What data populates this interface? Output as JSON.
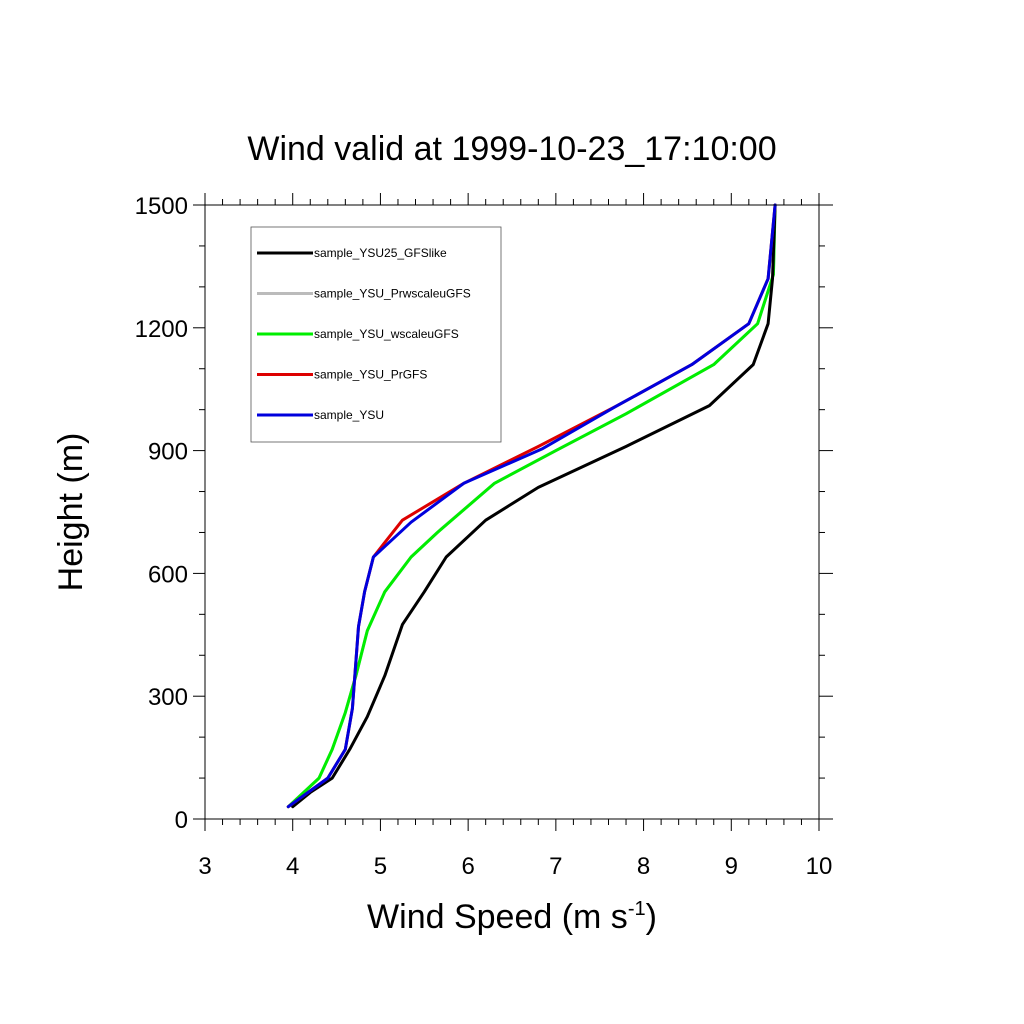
{
  "chart_data": {
    "type": "line",
    "title": "Wind valid at 1999-10-23_17:10:00",
    "xlabel": "Wind Speed (m s",
    "xlabel_sup": "-1",
    "xlabel_tail": ")",
    "ylabel": "Height (m)",
    "xlim": [
      3,
      10
    ],
    "ylim": [
      0,
      1500
    ],
    "x_ticks": [
      3,
      4,
      5,
      6,
      7,
      8,
      9,
      10
    ],
    "y_ticks": [
      0,
      300,
      600,
      900,
      1200,
      1500
    ],
    "x_tick_labels": [
      "3",
      "4",
      "5",
      "6",
      "7",
      "8",
      "9",
      "10"
    ],
    "y_tick_labels": [
      "0",
      "300",
      "600",
      "900",
      "1200",
      "1500"
    ],
    "legend_position": "top-left",
    "grid": false,
    "series": [
      {
        "name": "sample_YSU25_GFSlike",
        "color": "#000000",
        "points": [
          [
            4.0,
            30
          ],
          [
            4.2,
            65
          ],
          [
            4.45,
            100
          ],
          [
            4.65,
            170
          ],
          [
            4.85,
            250
          ],
          [
            5.05,
            350
          ],
          [
            5.25,
            475
          ],
          [
            5.5,
            555
          ],
          [
            5.75,
            640
          ],
          [
            6.2,
            730
          ],
          [
            6.8,
            810
          ],
          [
            7.8,
            910
          ],
          [
            8.75,
            1010
          ],
          [
            9.25,
            1110
          ],
          [
            9.42,
            1210
          ],
          [
            9.47,
            1320
          ],
          [
            9.5,
            1500
          ]
        ]
      },
      {
        "name": "sample_YSU_PrwscaleuGFS",
        "color": "#bbbbbb",
        "points": [
          [
            3.95,
            30
          ],
          [
            4.3,
            100
          ],
          [
            4.45,
            170
          ],
          [
            4.6,
            260
          ],
          [
            4.72,
            350
          ],
          [
            4.85,
            460
          ],
          [
            5.05,
            555
          ],
          [
            5.35,
            640
          ],
          [
            5.7,
            710
          ],
          [
            6.3,
            820
          ],
          [
            7.0,
            900
          ],
          [
            7.8,
            990
          ],
          [
            8.8,
            1110
          ],
          [
            9.3,
            1210
          ],
          [
            9.48,
            1330
          ],
          [
            9.5,
            1500
          ]
        ]
      },
      {
        "name": "sample_YSU_wscaleuGFS",
        "color": "#00ee00",
        "points": [
          [
            3.95,
            30
          ],
          [
            4.3,
            100
          ],
          [
            4.45,
            170
          ],
          [
            4.6,
            260
          ],
          [
            4.72,
            350
          ],
          [
            4.85,
            460
          ],
          [
            5.05,
            555
          ],
          [
            5.35,
            640
          ],
          [
            5.65,
            700
          ],
          [
            6.3,
            820
          ],
          [
            7.0,
            900
          ],
          [
            7.8,
            990
          ],
          [
            8.8,
            1110
          ],
          [
            9.3,
            1210
          ],
          [
            9.48,
            1330
          ],
          [
            9.5,
            1500
          ]
        ]
      },
      {
        "name": "sample_YSU_PrGFS",
        "color": "#dd0000",
        "points": [
          [
            3.95,
            30
          ],
          [
            4.4,
            100
          ],
          [
            4.6,
            170
          ],
          [
            4.68,
            270
          ],
          [
            4.75,
            470
          ],
          [
            4.82,
            555
          ],
          [
            4.92,
            640
          ],
          [
            5.25,
            730
          ],
          [
            5.95,
            820
          ],
          [
            6.8,
            910
          ],
          [
            7.7,
            1010
          ],
          [
            8.55,
            1110
          ],
          [
            9.2,
            1210
          ],
          [
            9.42,
            1320
          ],
          [
            9.5,
            1500
          ]
        ]
      },
      {
        "name": "sample_YSU",
        "color": "#0000dd",
        "points": [
          [
            3.95,
            30
          ],
          [
            4.4,
            100
          ],
          [
            4.6,
            170
          ],
          [
            4.68,
            270
          ],
          [
            4.75,
            470
          ],
          [
            4.82,
            555
          ],
          [
            4.92,
            640
          ],
          [
            5.35,
            725
          ],
          [
            5.95,
            820
          ],
          [
            6.85,
            905
          ],
          [
            7.7,
            1010
          ],
          [
            8.55,
            1110
          ],
          [
            9.2,
            1210
          ],
          [
            9.42,
            1320
          ],
          [
            9.5,
            1500
          ]
        ]
      }
    ]
  }
}
